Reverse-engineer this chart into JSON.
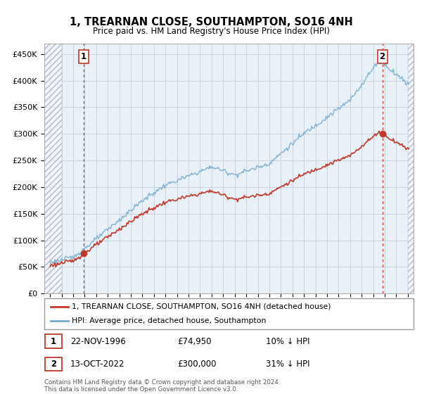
{
  "title": "1, TREARNAN CLOSE, SOUTHAMPTON, SO16 4NH",
  "subtitle": "Price paid vs. HM Land Registry's House Price Index (HPI)",
  "hpi_label": "HPI: Average price, detached house, Southampton",
  "property_label": "1, TREARNAN CLOSE, SOUTHAMPTON, SO16 4NH (detached house)",
  "footer": "Contains HM Land Registry data © Crown copyright and database right 2024.\nThis data is licensed under the Open Government Licence v3.0.",
  "sale1_date": "22-NOV-1996",
  "sale1_price": "£74,950",
  "sale1_hpi": "10% ↓ HPI",
  "sale1_year": 1996.92,
  "sale1_value": 74950,
  "sale2_date": "13-OCT-2022",
  "sale2_price": "£300,000",
  "sale2_hpi": "31% ↓ HPI",
  "sale2_year": 2022.79,
  "sale2_value": 300000,
  "hpi_color": "#74aacd",
  "property_color": "#c0392b",
  "ylim": [
    0,
    470000
  ],
  "yticks": [
    0,
    50000,
    100000,
    150000,
    200000,
    250000,
    300000,
    350000,
    400000,
    450000
  ],
  "xlim": [
    1993.5,
    2025.5
  ],
  "chart_bg": "#e8f0f8",
  "grid_color": "#c0ccd8"
}
